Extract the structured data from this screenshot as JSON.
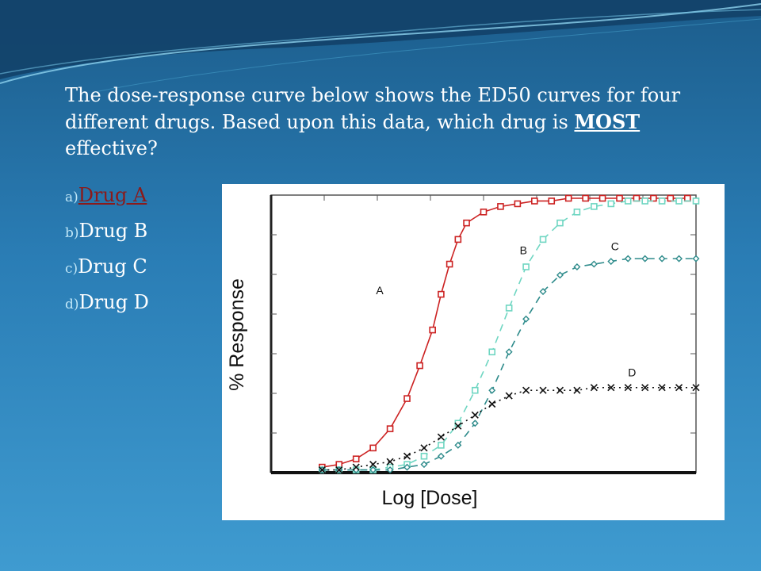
{
  "slide": {
    "question_part1": "The dose-response curve below shows the ED50 curves for four different drugs.  Based upon this data, which drug is ",
    "question_bold": "MOST",
    "question_part2": " effective?",
    "answers": [
      {
        "letter": "a)",
        "text": "Drug A"
      },
      {
        "letter": "b)",
        "text": "Drug B"
      },
      {
        "letter": "c)",
        "text": "Drug C"
      },
      {
        "letter": "d)",
        "text": "Drug D"
      }
    ],
    "link_color": "#8b1a1a"
  },
  "chart_data": {
    "type": "line",
    "title": "",
    "xlabel": "Log [Dose]",
    "ylabel": "% Response",
    "xlim": [
      0,
      1
    ],
    "ylim": [
      0,
      1
    ],
    "grid": false,
    "series": [
      {
        "name": "A",
        "color": "#cc2222",
        "marker": "square",
        "line": "solid",
        "x": [
          0.12,
          0.16,
          0.2,
          0.24,
          0.28,
          0.32,
          0.35,
          0.38,
          0.4,
          0.42,
          0.44,
          0.46,
          0.5,
          0.54,
          0.58,
          0.62,
          0.66,
          0.7,
          0.74,
          0.78,
          0.82,
          0.86,
          0.9,
          0.94,
          0.98
        ],
        "y": [
          0.02,
          0.03,
          0.05,
          0.09,
          0.16,
          0.27,
          0.39,
          0.52,
          0.65,
          0.76,
          0.85,
          0.91,
          0.95,
          0.97,
          0.98,
          0.99,
          0.99,
          1.0,
          1.0,
          1.0,
          1.0,
          1.0,
          1.0,
          1.0,
          1.0
        ]
      },
      {
        "name": "B",
        "color": "#6fd6c2",
        "marker": "square",
        "line": "dashed",
        "x": [
          0.12,
          0.16,
          0.2,
          0.24,
          0.28,
          0.32,
          0.36,
          0.4,
          0.44,
          0.48,
          0.52,
          0.56,
          0.6,
          0.64,
          0.68,
          0.72,
          0.76,
          0.8,
          0.84,
          0.88,
          0.92,
          0.96,
          1.0
        ],
        "y": [
          0.01,
          0.01,
          0.01,
          0.01,
          0.02,
          0.03,
          0.06,
          0.1,
          0.18,
          0.3,
          0.44,
          0.6,
          0.75,
          0.85,
          0.91,
          0.95,
          0.97,
          0.98,
          0.99,
          0.99,
          0.99,
          0.99,
          0.99
        ]
      },
      {
        "name": "C",
        "color": "#2e8b8b",
        "marker": "diamond",
        "line": "dashed",
        "x": [
          0.12,
          0.16,
          0.2,
          0.24,
          0.28,
          0.32,
          0.36,
          0.4,
          0.44,
          0.48,
          0.52,
          0.56,
          0.6,
          0.64,
          0.68,
          0.72,
          0.76,
          0.8,
          0.84,
          0.88,
          0.92,
          0.96,
          1.0
        ],
        "y": [
          0.01,
          0.01,
          0.01,
          0.01,
          0.01,
          0.02,
          0.03,
          0.06,
          0.1,
          0.18,
          0.3,
          0.44,
          0.56,
          0.66,
          0.72,
          0.75,
          0.76,
          0.77,
          0.78,
          0.78,
          0.78,
          0.78,
          0.78
        ]
      },
      {
        "name": "D",
        "color": "#111111",
        "marker": "x",
        "line": "dotted",
        "x": [
          0.12,
          0.16,
          0.2,
          0.24,
          0.28,
          0.32,
          0.36,
          0.4,
          0.44,
          0.48,
          0.52,
          0.56,
          0.6,
          0.64,
          0.68,
          0.72,
          0.76,
          0.8,
          0.84,
          0.88,
          0.92,
          0.96,
          1.0
        ],
        "y": [
          0.01,
          0.01,
          0.02,
          0.03,
          0.04,
          0.06,
          0.09,
          0.13,
          0.17,
          0.21,
          0.25,
          0.28,
          0.3,
          0.3,
          0.3,
          0.3,
          0.31,
          0.31,
          0.31,
          0.31,
          0.31,
          0.31,
          0.31
        ]
      }
    ]
  }
}
